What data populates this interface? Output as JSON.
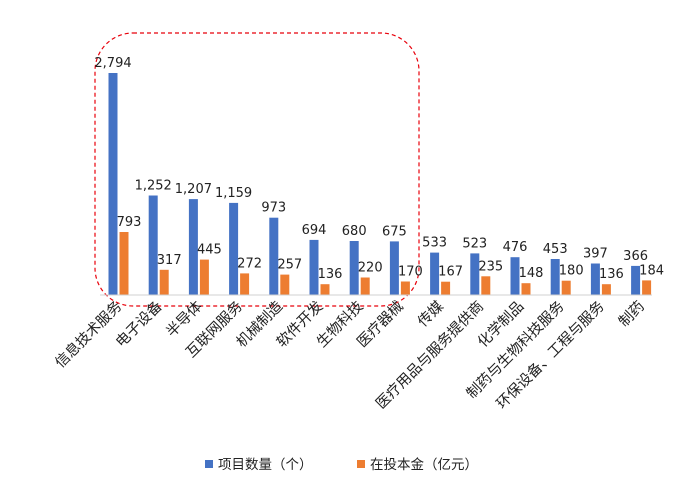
{
  "chart_data": {
    "type": "bar",
    "categories": [
      "信息技术服务",
      "电子设备",
      "半导体",
      "互联网服务",
      "机械制造",
      "软件开发",
      "生物科技",
      "医疗器械",
      "传媒",
      "医疗用品与服务提供商",
      "化学制品",
      "制药与生物科技服务",
      "环保设备、工程与服务",
      "制药"
    ],
    "series": [
      {
        "name": "项目数量（个）",
        "color": "#4472C4",
        "values": [
          2794,
          1252,
          1207,
          1159,
          973,
          694,
          680,
          675,
          533,
          523,
          476,
          453,
          397,
          366
        ]
      },
      {
        "name": "在投本金（亿元）",
        "color": "#ED7D31",
        "values": [
          793,
          317,
          445,
          272,
          257,
          136,
          220,
          170,
          167,
          235,
          148,
          180,
          136,
          184
        ]
      }
    ],
    "value_labels": [
      [
        "2,794",
        "1,252",
        "1,207",
        "1,159",
        "973",
        "694",
        "680",
        "675",
        "533",
        "523",
        "476",
        "453",
        "397",
        "366"
      ],
      [
        "793",
        "317",
        "445",
        "272",
        "257",
        "136",
        "220",
        "170",
        "167",
        "235",
        "148",
        "180",
        "136",
        "184"
      ]
    ],
    "ylim": [
      0,
      2794
    ],
    "grid": false,
    "legend_position": "bottom",
    "highlight_color": "#E8000B"
  }
}
